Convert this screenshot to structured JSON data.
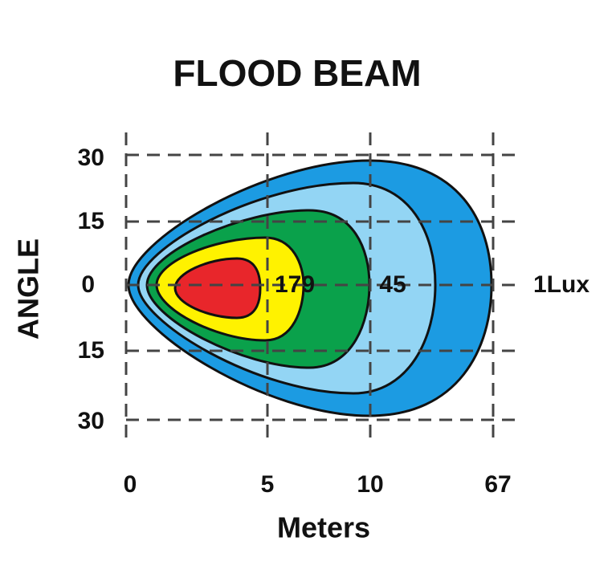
{
  "title": "FLOOD BEAM",
  "y_axis": {
    "label": "ANGLE",
    "ticks": [
      "30",
      "15",
      "0",
      "15",
      "30"
    ]
  },
  "x_axis": {
    "label": "Meters",
    "ticks": [
      "0",
      "5",
      "10",
      "67"
    ]
  },
  "contour_labels": [
    "179",
    "45",
    "1Lux"
  ]
}
